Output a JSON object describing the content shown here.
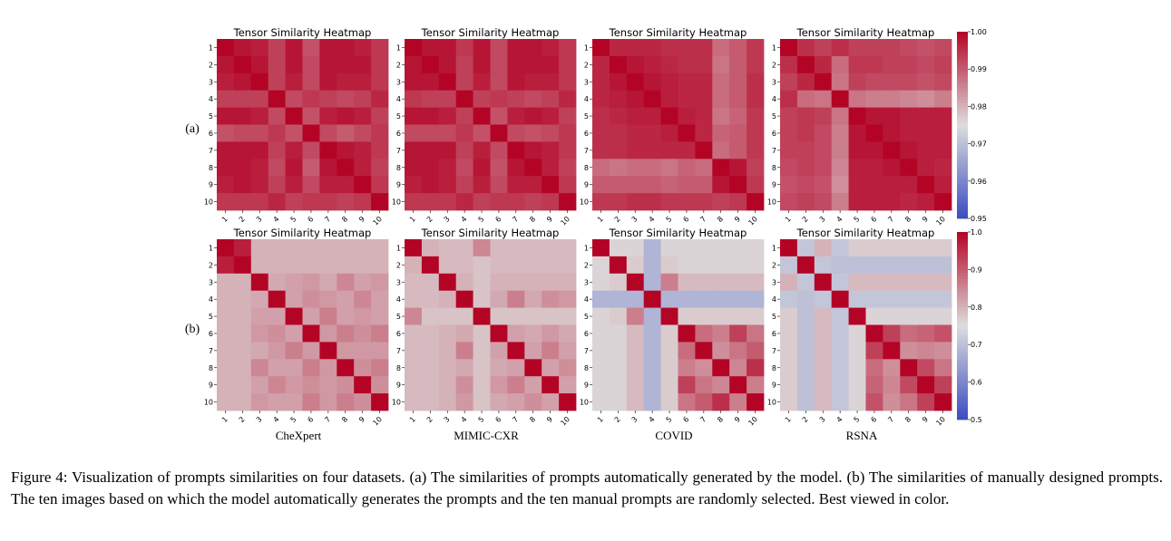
{
  "figure": {
    "row_labels": [
      "(a)",
      "(b)"
    ],
    "dataset_labels": [
      "CheXpert",
      "MIMIC-CXR",
      "COVID",
      "RSNA"
    ],
    "colormap": {
      "low": "#3b4cc0",
      "mid": "#dddddd",
      "high": "#b40426"
    }
  },
  "chart_data": [
    {
      "type": "heatmap",
      "row": "a",
      "dataset": "CheXpert",
      "title": "Tensor Similarity Heatmap",
      "x_ticks": [
        "1",
        "2",
        "3",
        "4",
        "5",
        "6",
        "7",
        "8",
        "9",
        "10"
      ],
      "y_ticks": [
        "1",
        "2",
        "3",
        "4",
        "5",
        "6",
        "7",
        "8",
        "9",
        "10"
      ],
      "vmin": 0.95,
      "vmax": 1.0,
      "values": [
        [
          1.0,
          0.998,
          0.997,
          0.993,
          0.998,
          0.991,
          0.998,
          0.998,
          0.997,
          0.994
        ],
        [
          0.998,
          1.0,
          0.998,
          0.993,
          0.998,
          0.992,
          0.998,
          0.998,
          0.998,
          0.994
        ],
        [
          0.997,
          0.998,
          1.0,
          0.993,
          0.997,
          0.992,
          0.998,
          0.997,
          0.997,
          0.994
        ],
        [
          0.993,
          0.993,
          0.993,
          1.0,
          0.992,
          0.994,
          0.993,
          0.992,
          0.993,
          0.996
        ],
        [
          0.998,
          0.998,
          0.997,
          0.992,
          1.0,
          0.991,
          0.997,
          0.998,
          0.997,
          0.993
        ],
        [
          0.991,
          0.992,
          0.992,
          0.994,
          0.991,
          1.0,
          0.992,
          0.99,
          0.992,
          0.994
        ],
        [
          0.998,
          0.998,
          0.998,
          0.993,
          0.997,
          0.992,
          1.0,
          0.998,
          0.997,
          0.994
        ],
        [
          0.998,
          0.998,
          0.997,
          0.992,
          0.998,
          0.99,
          0.998,
          1.0,
          0.997,
          0.993
        ],
        [
          0.997,
          0.998,
          0.997,
          0.993,
          0.997,
          0.992,
          0.997,
          0.997,
          1.0,
          0.994
        ],
        [
          0.994,
          0.994,
          0.994,
          0.996,
          0.993,
          0.994,
          0.994,
          0.993,
          0.994,
          1.0
        ]
      ]
    },
    {
      "type": "heatmap",
      "row": "a",
      "dataset": "MIMIC-CXR",
      "title": "Tensor Similarity Heatmap",
      "x_ticks": [
        "1",
        "2",
        "3",
        "4",
        "5",
        "6",
        "7",
        "8",
        "9",
        "10"
      ],
      "y_ticks": [
        "1",
        "2",
        "3",
        "4",
        "5",
        "6",
        "7",
        "8",
        "9",
        "10"
      ],
      "vmin": 0.95,
      "vmax": 1.0,
      "values": [
        [
          1.0,
          0.998,
          0.998,
          0.994,
          0.998,
          0.992,
          0.998,
          0.998,
          0.997,
          0.994
        ],
        [
          0.998,
          1.0,
          0.998,
          0.993,
          0.998,
          0.992,
          0.998,
          0.998,
          0.998,
          0.994
        ],
        [
          0.998,
          0.998,
          1.0,
          0.993,
          0.997,
          0.992,
          0.998,
          0.997,
          0.997,
          0.994
        ],
        [
          0.994,
          0.993,
          0.993,
          1.0,
          0.993,
          0.994,
          0.993,
          0.992,
          0.993,
          0.996
        ],
        [
          0.998,
          0.998,
          0.997,
          0.993,
          1.0,
          0.991,
          0.997,
          0.998,
          0.997,
          0.993
        ],
        [
          0.992,
          0.992,
          0.992,
          0.994,
          0.991,
          1.0,
          0.992,
          0.991,
          0.992,
          0.994
        ],
        [
          0.998,
          0.998,
          0.998,
          0.993,
          0.997,
          0.992,
          1.0,
          0.998,
          0.997,
          0.994
        ],
        [
          0.998,
          0.998,
          0.997,
          0.992,
          0.998,
          0.991,
          0.998,
          1.0,
          0.997,
          0.993
        ],
        [
          0.997,
          0.998,
          0.997,
          0.993,
          0.997,
          0.992,
          0.997,
          0.997,
          1.0,
          0.994
        ],
        [
          0.994,
          0.994,
          0.994,
          0.996,
          0.993,
          0.994,
          0.994,
          0.993,
          0.994,
          1.0
        ]
      ]
    },
    {
      "type": "heatmap",
      "row": "a",
      "dataset": "COVID",
      "title": "Tensor Similarity Heatmap",
      "x_ticks": [
        "1",
        "2",
        "3",
        "4",
        "5",
        "6",
        "7",
        "8",
        "9",
        "10"
      ],
      "y_ticks": [
        "1",
        "2",
        "3",
        "4",
        "5",
        "6",
        "7",
        "8",
        "9",
        "10"
      ],
      "vmin": 0.95,
      "vmax": 1.0,
      "values": [
        [
          1.0,
          0.996,
          0.996,
          0.996,
          0.995,
          0.995,
          0.995,
          0.988,
          0.99,
          0.994
        ],
        [
          0.996,
          1.0,
          0.998,
          0.997,
          0.996,
          0.995,
          0.995,
          0.987,
          0.99,
          0.994
        ],
        [
          0.996,
          0.998,
          1.0,
          0.998,
          0.997,
          0.996,
          0.996,
          0.988,
          0.99,
          0.995
        ],
        [
          0.996,
          0.997,
          0.998,
          1.0,
          0.997,
          0.996,
          0.996,
          0.988,
          0.99,
          0.995
        ],
        [
          0.995,
          0.996,
          0.997,
          0.997,
          1.0,
          0.997,
          0.996,
          0.987,
          0.989,
          0.994
        ],
        [
          0.995,
          0.995,
          0.996,
          0.996,
          0.997,
          1.0,
          0.996,
          0.989,
          0.99,
          0.994
        ],
        [
          0.995,
          0.995,
          0.996,
          0.996,
          0.996,
          0.996,
          1.0,
          0.988,
          0.99,
          0.994
        ],
        [
          0.988,
          0.987,
          0.988,
          0.988,
          0.987,
          0.989,
          0.988,
          1.0,
          0.998,
          0.993
        ],
        [
          0.99,
          0.99,
          0.99,
          0.99,
          0.989,
          0.99,
          0.99,
          0.998,
          1.0,
          0.994
        ],
        [
          0.994,
          0.994,
          0.995,
          0.995,
          0.994,
          0.994,
          0.994,
          0.993,
          0.994,
          1.0
        ]
      ]
    },
    {
      "type": "heatmap",
      "row": "a",
      "dataset": "RSNA",
      "title": "Tensor Similarity Heatmap",
      "x_ticks": [
        "1",
        "2",
        "3",
        "4",
        "5",
        "6",
        "7",
        "8",
        "9",
        "10"
      ],
      "y_ticks": [
        "1",
        "2",
        "3",
        "4",
        "5",
        "6",
        "7",
        "8",
        "9",
        "10"
      ],
      "vmin": 0.95,
      "vmax": 1.0,
      "values": [
        [
          1.0,
          0.995,
          0.993,
          0.995,
          0.993,
          0.993,
          0.993,
          0.992,
          0.991,
          0.992
        ],
        [
          0.995,
          1.0,
          0.996,
          0.988,
          0.994,
          0.994,
          0.993,
          0.993,
          0.992,
          0.993
        ],
        [
          0.993,
          0.996,
          1.0,
          0.987,
          0.993,
          0.992,
          0.992,
          0.992,
          0.991,
          0.992
        ],
        [
          0.995,
          0.988,
          0.987,
          1.0,
          0.987,
          0.986,
          0.986,
          0.985,
          0.984,
          0.986
        ],
        [
          0.993,
          0.994,
          0.993,
          0.987,
          1.0,
          0.998,
          0.998,
          0.997,
          0.997,
          0.997
        ],
        [
          0.993,
          0.994,
          0.992,
          0.986,
          0.998,
          1.0,
          0.998,
          0.997,
          0.997,
          0.997
        ],
        [
          0.993,
          0.993,
          0.992,
          0.986,
          0.998,
          0.998,
          1.0,
          0.998,
          0.997,
          0.997
        ],
        [
          0.992,
          0.993,
          0.992,
          0.985,
          0.997,
          0.997,
          0.998,
          1.0,
          0.997,
          0.996
        ],
        [
          0.991,
          0.992,
          0.991,
          0.984,
          0.997,
          0.997,
          0.997,
          0.997,
          1.0,
          0.997
        ],
        [
          0.992,
          0.993,
          0.992,
          0.986,
          0.997,
          0.997,
          0.997,
          0.996,
          0.997,
          1.0
        ]
      ]
    },
    {
      "type": "heatmap",
      "row": "b",
      "dataset": "CheXpert",
      "title": "Tensor Similarity Heatmap",
      "x_ticks": [
        "1",
        "2",
        "3",
        "4",
        "5",
        "6",
        "7",
        "8",
        "9",
        "10"
      ],
      "y_ticks": [
        "1",
        "2",
        "3",
        "4",
        "5",
        "6",
        "7",
        "8",
        "9",
        "10"
      ],
      "vmin": 0.5,
      "vmax": 1.0,
      "values": [
        [
          1.0,
          0.97,
          0.8,
          0.8,
          0.8,
          0.8,
          0.8,
          0.8,
          0.8,
          0.8
        ],
        [
          0.97,
          1.0,
          0.8,
          0.8,
          0.8,
          0.8,
          0.8,
          0.8,
          0.8,
          0.8
        ],
        [
          0.8,
          0.8,
          1.0,
          0.81,
          0.82,
          0.83,
          0.81,
          0.85,
          0.82,
          0.83
        ],
        [
          0.8,
          0.8,
          0.81,
          1.0,
          0.82,
          0.84,
          0.83,
          0.82,
          0.85,
          0.82
        ],
        [
          0.8,
          0.8,
          0.82,
          0.82,
          1.0,
          0.82,
          0.86,
          0.82,
          0.83,
          0.82
        ],
        [
          0.8,
          0.8,
          0.83,
          0.84,
          0.82,
          1.0,
          0.83,
          0.86,
          0.84,
          0.86
        ],
        [
          0.8,
          0.8,
          0.81,
          0.83,
          0.86,
          0.83,
          1.0,
          0.83,
          0.83,
          0.83
        ],
        [
          0.8,
          0.8,
          0.85,
          0.82,
          0.82,
          0.86,
          0.83,
          1.0,
          0.84,
          0.86
        ],
        [
          0.8,
          0.8,
          0.82,
          0.85,
          0.83,
          0.84,
          0.83,
          0.84,
          1.0,
          0.84
        ],
        [
          0.8,
          0.8,
          0.83,
          0.82,
          0.82,
          0.86,
          0.83,
          0.86,
          0.84,
          1.0
        ]
      ]
    },
    {
      "type": "heatmap",
      "row": "b",
      "dataset": "MIMIC-CXR",
      "title": "Tensor Similarity Heatmap",
      "x_ticks": [
        "1",
        "2",
        "3",
        "4",
        "5",
        "6",
        "7",
        "8",
        "9",
        "10"
      ],
      "y_ticks": [
        "1",
        "2",
        "3",
        "4",
        "5",
        "6",
        "7",
        "8",
        "9",
        "10"
      ],
      "vmin": 0.5,
      "vmax": 1.0,
      "values": [
        [
          1.0,
          0.8,
          0.79,
          0.79,
          0.85,
          0.79,
          0.79,
          0.79,
          0.79,
          0.79
        ],
        [
          0.8,
          1.0,
          0.79,
          0.79,
          0.78,
          0.79,
          0.79,
          0.79,
          0.79,
          0.79
        ],
        [
          0.79,
          0.79,
          1.0,
          0.8,
          0.78,
          0.8,
          0.8,
          0.8,
          0.8,
          0.8
        ],
        [
          0.79,
          0.79,
          0.8,
          1.0,
          0.78,
          0.81,
          0.86,
          0.81,
          0.84,
          0.83
        ],
        [
          0.85,
          0.78,
          0.78,
          0.78,
          1.0,
          0.78,
          0.78,
          0.78,
          0.78,
          0.78
        ],
        [
          0.79,
          0.79,
          0.8,
          0.81,
          0.78,
          1.0,
          0.82,
          0.81,
          0.83,
          0.81
        ],
        [
          0.79,
          0.79,
          0.8,
          0.86,
          0.78,
          0.82,
          1.0,
          0.82,
          0.86,
          0.82
        ],
        [
          0.79,
          0.79,
          0.8,
          0.81,
          0.78,
          0.81,
          0.82,
          1.0,
          0.82,
          0.84
        ],
        [
          0.79,
          0.79,
          0.8,
          0.84,
          0.78,
          0.83,
          0.86,
          0.82,
          1.0,
          0.82
        ],
        [
          0.79,
          0.79,
          0.8,
          0.83,
          0.78,
          0.81,
          0.82,
          0.84,
          0.82,
          1.0
        ]
      ]
    },
    {
      "type": "heatmap",
      "row": "b",
      "dataset": "COVID",
      "title": "Tensor Similarity Heatmap",
      "x_ticks": [
        "1",
        "2",
        "3",
        "4",
        "5",
        "6",
        "7",
        "8",
        "9",
        "10"
      ],
      "y_ticks": [
        "1",
        "2",
        "3",
        "4",
        "5",
        "6",
        "7",
        "8",
        "9",
        "10"
      ],
      "vmin": 0.5,
      "vmax": 1.0,
      "values": [
        [
          1.0,
          0.76,
          0.76,
          0.68,
          0.76,
          0.76,
          0.76,
          0.76,
          0.76,
          0.76
        ],
        [
          0.76,
          1.0,
          0.77,
          0.68,
          0.77,
          0.76,
          0.76,
          0.76,
          0.76,
          0.76
        ],
        [
          0.76,
          0.77,
          1.0,
          0.68,
          0.86,
          0.79,
          0.79,
          0.79,
          0.79,
          0.79
        ],
        [
          0.68,
          0.68,
          0.68,
          1.0,
          0.68,
          0.68,
          0.68,
          0.68,
          0.68,
          0.68
        ],
        [
          0.76,
          0.77,
          0.86,
          0.68,
          1.0,
          0.77,
          0.77,
          0.77,
          0.77,
          0.77
        ],
        [
          0.76,
          0.76,
          0.79,
          0.68,
          0.77,
          1.0,
          0.88,
          0.86,
          0.93,
          0.87
        ],
        [
          0.76,
          0.76,
          0.79,
          0.68,
          0.77,
          0.88,
          1.0,
          0.84,
          0.87,
          0.9
        ],
        [
          0.76,
          0.76,
          0.79,
          0.68,
          0.77,
          0.86,
          0.84,
          1.0,
          0.85,
          0.95
        ],
        [
          0.76,
          0.76,
          0.79,
          0.68,
          0.77,
          0.93,
          0.87,
          0.85,
          1.0,
          0.86
        ],
        [
          0.76,
          0.76,
          0.79,
          0.68,
          0.77,
          0.87,
          0.9,
          0.95,
          0.86,
          1.0
        ]
      ]
    },
    {
      "type": "heatmap",
      "row": "b",
      "dataset": "RSNA",
      "title": "Tensor Similarity Heatmap",
      "x_ticks": [
        "1",
        "2",
        "3",
        "4",
        "5",
        "6",
        "7",
        "8",
        "9",
        "10"
      ],
      "y_ticks": [
        "1",
        "2",
        "3",
        "4",
        "5",
        "6",
        "7",
        "8",
        "9",
        "10"
      ],
      "vmin": 0.5,
      "vmax": 1.0,
      "values": [
        [
          1.0,
          0.71,
          0.8,
          0.71,
          0.77,
          0.77,
          0.77,
          0.77,
          0.77,
          0.77
        ],
        [
          0.71,
          1.0,
          0.71,
          0.7,
          0.7,
          0.7,
          0.7,
          0.7,
          0.7,
          0.7
        ],
        [
          0.8,
          0.71,
          1.0,
          0.71,
          0.79,
          0.79,
          0.79,
          0.79,
          0.79,
          0.79
        ],
        [
          0.71,
          0.7,
          0.71,
          1.0,
          0.71,
          0.71,
          0.71,
          0.71,
          0.71,
          0.71
        ],
        [
          0.77,
          0.7,
          0.79,
          0.71,
          1.0,
          0.76,
          0.76,
          0.76,
          0.76,
          0.76
        ],
        [
          0.77,
          0.7,
          0.79,
          0.71,
          0.76,
          1.0,
          0.93,
          0.88,
          0.89,
          0.91
        ],
        [
          0.77,
          0.7,
          0.79,
          0.71,
          0.76,
          0.93,
          1.0,
          0.84,
          0.85,
          0.84
        ],
        [
          0.77,
          0.7,
          0.79,
          0.71,
          0.76,
          0.88,
          0.84,
          1.0,
          0.92,
          0.87
        ],
        [
          0.77,
          0.7,
          0.79,
          0.71,
          0.76,
          0.89,
          0.85,
          0.92,
          1.0,
          0.93
        ],
        [
          0.77,
          0.7,
          0.79,
          0.71,
          0.76,
          0.91,
          0.84,
          0.87,
          0.93,
          1.0
        ]
      ]
    }
  ],
  "colorbars": [
    {
      "row": "a",
      "vmin": 0.95,
      "vmax": 1.0,
      "ticks": [
        "1.00",
        "0.99",
        "0.98",
        "0.97",
        "0.96",
        "0.95"
      ],
      "tick_values": [
        1.0,
        0.99,
        0.98,
        0.97,
        0.96,
        0.95
      ]
    },
    {
      "row": "b",
      "vmin": 0.5,
      "vmax": 1.0,
      "ticks": [
        "1.0",
        "0.9",
        "0.8",
        "0.7",
        "0.6",
        "0.5"
      ],
      "tick_values": [
        1.0,
        0.9,
        0.8,
        0.7,
        0.6,
        0.5
      ]
    }
  ],
  "caption": "Figure 4: Visualization of prompts similarities on four datasets. (a) The similarities of prompts automatically generated by the model. (b) The similarities of manually designed prompts. The ten images based on which the model automatically generates the prompts and the ten manual prompts are randomly selected. Best viewed in color."
}
